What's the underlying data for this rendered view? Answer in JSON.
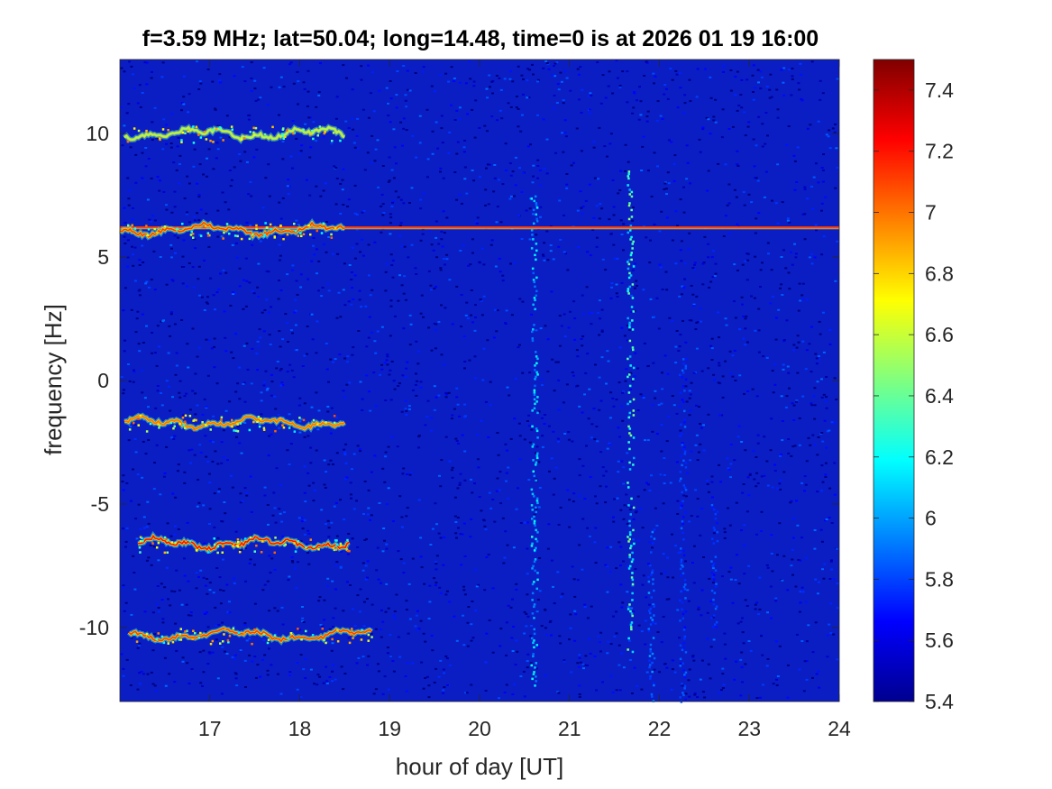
{
  "chart_data": {
    "type": "heatmap",
    "title": "f=3.59 MHz;  lat=50.04; long=14.48, time=0 is at 2026 01 19 16:00",
    "xlabel": "hour of day [UT]",
    "ylabel": "frequency [Hz]",
    "xlim": [
      16,
      24
    ],
    "ylim": [
      -13,
      13
    ],
    "xticks": [
      17,
      18,
      19,
      20,
      21,
      22,
      23,
      24
    ],
    "xtick_labels": [
      "17",
      "18",
      "19",
      "20",
      "21",
      "22",
      "23",
      "24"
    ],
    "yticks": [
      10,
      5,
      0,
      -5,
      -10
    ],
    "ytick_labels": [
      "10",
      "5",
      "0",
      "-5",
      "-10"
    ],
    "colorbar": {
      "min": 5.4,
      "max": 7.5,
      "colormap": "jet",
      "ticks": [
        7.4,
        7.2,
        7.0,
        6.8,
        6.6,
        6.4,
        6.2,
        6.0,
        5.8,
        5.6,
        5.4
      ],
      "tick_labels": [
        "7.4",
        "7.2",
        "7",
        "6.8",
        "6.6",
        "6.4",
        "6.2",
        "6",
        "5.8",
        "5.6",
        "5.4"
      ]
    },
    "background_level": 5.45,
    "horizontal_line": {
      "freq": 6.2,
      "x_start": 16,
      "x_end": 24,
      "level": 7.1
    },
    "traces": [
      {
        "freq": 10.0,
        "x_start": 16.05,
        "x_end": 18.5,
        "level": 6.5
      },
      {
        "freq": 6.1,
        "x_start": 16.0,
        "x_end": 18.5,
        "level": 7.1
      },
      {
        "freq": -1.7,
        "x_start": 16.05,
        "x_end": 18.5,
        "level": 7.0
      },
      {
        "freq": -6.6,
        "x_start": 16.2,
        "x_end": 18.55,
        "level": 7.2
      },
      {
        "freq": -10.3,
        "x_start": 16.1,
        "x_end": 18.8,
        "level": 7.1
      }
    ],
    "streaks": [
      {
        "x": 20.6,
        "y_from": -12.5,
        "y_to": 7.5,
        "level": 6.1
      },
      {
        "x": 21.67,
        "y_from": -11.5,
        "y_to": 8.5,
        "level": 6.3
      },
      {
        "x": 21.9,
        "y_from": -13,
        "y_to": -6,
        "level": 5.9
      },
      {
        "x": 22.25,
        "y_from": -13,
        "y_to": 1,
        "level": 5.8
      },
      {
        "x": 22.6,
        "y_from": -10,
        "y_to": -5,
        "level": 5.8
      }
    ]
  }
}
